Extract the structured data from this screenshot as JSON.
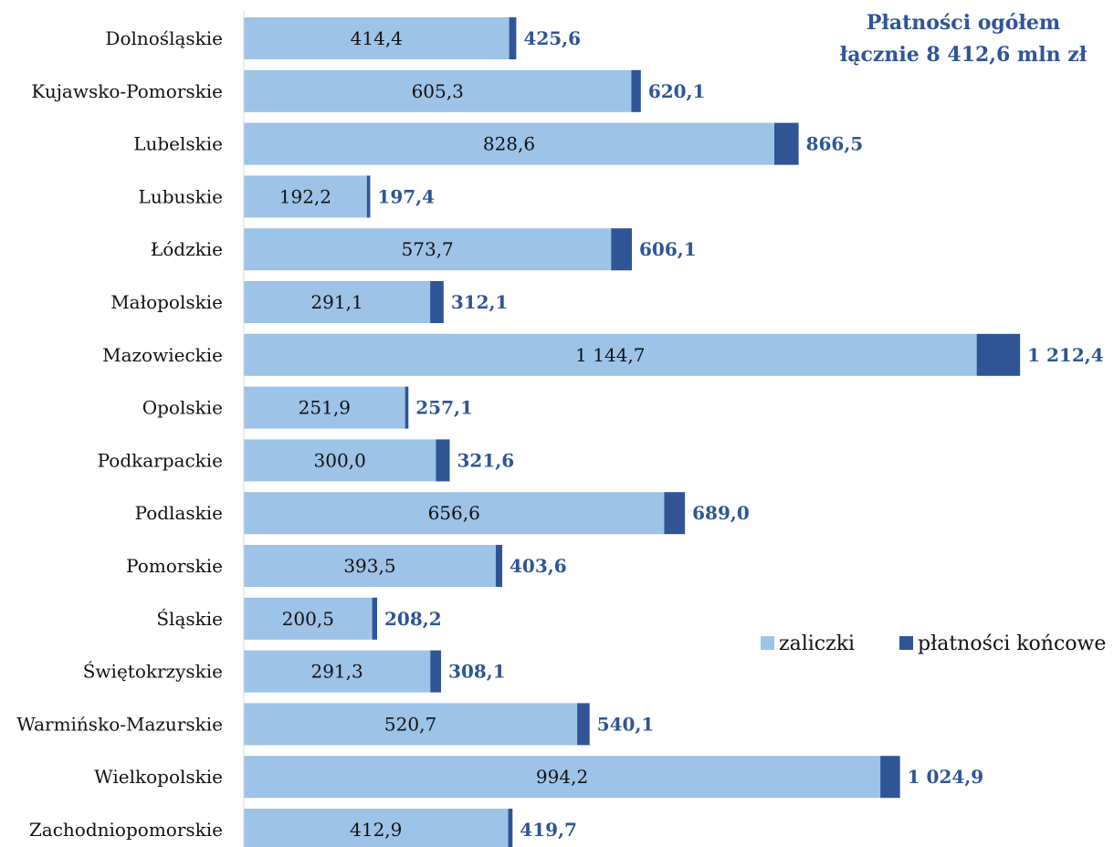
{
  "colors": {
    "zaliczki": "#9dc3e6",
    "platnosci_koncowe": "#2f5597",
    "axis": "#d9d9d9",
    "total_label": "#2f5597"
  },
  "title": {
    "line1": "Płatności ogółem",
    "line2": "łącznie 8 412,6 mln zł"
  },
  "legend": {
    "items": [
      "zaliczki",
      "płatności końcowe"
    ],
    "placement": "right"
  },
  "chart_data": {
    "type": "bar",
    "orientation": "horizontal",
    "stacked": true,
    "categories": [
      "Dolnośląskie",
      "Kujawsko-Pomorskie",
      "Lubelskie",
      "Lubuskie",
      "Łódzkie",
      "Małopolskie",
      "Mazowieckie",
      "Opolskie",
      "Podkarpackie",
      "Podlaskie",
      "Pomorskie",
      "Śląskie",
      "Świętokrzyskie",
      "Warmińsko-Mazurskie",
      "Wielkopolskie",
      "Zachodniopomorskie"
    ],
    "series": [
      {
        "name": "zaliczki",
        "values": [
          414.4,
          605.3,
          828.6,
          192.2,
          573.7,
          291.1,
          1144.7,
          251.9,
          300.0,
          656.6,
          393.5,
          200.5,
          291.3,
          520.7,
          994.2,
          412.9
        ]
      },
      {
        "name": "płatności końcowe",
        "values": [
          11.2,
          14.8,
          37.9,
          5.2,
          32.4,
          21.0,
          67.7,
          5.2,
          21.6,
          32.4,
          10.1,
          7.7,
          16.8,
          19.4,
          30.7,
          6.8
        ]
      }
    ],
    "inner_labels": [
      "414,4",
      "605,3",
      "828,6",
      "192,2",
      "573,7",
      "291,1",
      "1 144,7",
      "251,9",
      "300,0",
      "656,6",
      "393,5",
      "200,5",
      "291,3",
      "520,7",
      "994,2",
      "412,9"
    ],
    "totals": [
      425.6,
      620.1,
      866.5,
      197.4,
      606.1,
      312.1,
      1212.4,
      257.1,
      321.6,
      689.0,
      403.6,
      208.2,
      308.1,
      540.1,
      1024.9,
      419.7
    ],
    "total_labels": [
      "425,6",
      "620,1",
      "866,5",
      "197,4",
      "606,1",
      "312,1",
      "1 212,4",
      "257,1",
      "321,6",
      "689,0",
      "403,6",
      "208,2",
      "308,1",
      "540,1",
      "1 024,9",
      "419,7"
    ],
    "xlim": [
      0,
      1212.4
    ],
    "grid": false
  }
}
